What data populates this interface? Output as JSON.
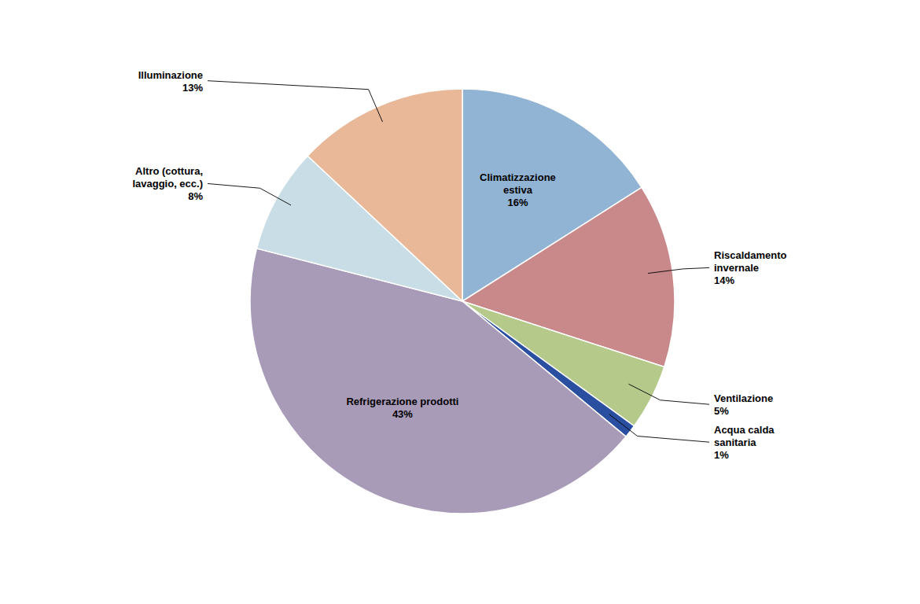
{
  "chart_data": {
    "type": "pie",
    "categories": [
      "Climatizzazione\nestiva",
      "Riscaldamento\ninvernale",
      "Ventilazione",
      "Acqua calda\nsanitaria",
      "Refrigerazione prodotti",
      "Altro (cottura,\nlavaggio, ecc.)",
      "Illuminazione"
    ],
    "values": [
      16,
      14,
      5,
      1,
      43,
      8,
      13
    ],
    "value_labels": [
      "16%",
      "14%",
      "5%",
      "1%",
      "43%",
      "8%",
      "13%"
    ],
    "colors": [
      "#92B4D4",
      "#C9898A",
      "#B5C98A",
      "#2B4FA0",
      "#A89BB8",
      "#C8DDE5",
      "#E8B898"
    ],
    "data_labels": true
  }
}
